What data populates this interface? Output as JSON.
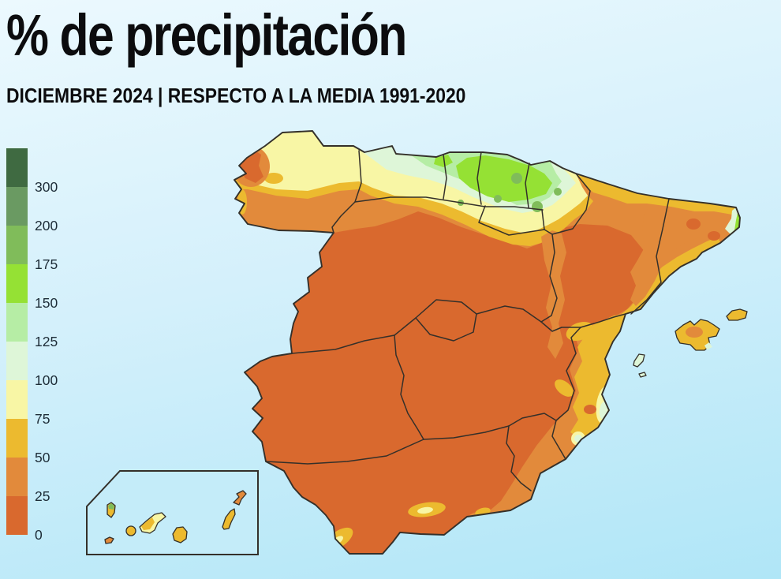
{
  "title": "% de precipitación",
  "subtitle": "DICIEMBRE 2024 | RESPECTO A LA MEDIA 1991-2020",
  "legend": {
    "bands": [
      {
        "label": "300",
        "color": "#3f6a41"
      },
      {
        "label": "200",
        "color": "#6a9a62"
      },
      {
        "label": "175",
        "color": "#80bc5a"
      },
      {
        "label": "150",
        "color": "#95e134"
      },
      {
        "label": "125",
        "color": "#b6eda5"
      },
      {
        "label": "100",
        "color": "#def6d8"
      },
      {
        "label": "75",
        "color": "#f8f6a5"
      },
      {
        "label": "50",
        "color": "#ecba2f"
      },
      {
        "label": "25",
        "color": "#e28a3b"
      },
      {
        "label": "0",
        "color": "#d9692e"
      }
    ]
  },
  "colors": {
    "sea_top": "#ecf9fe",
    "sea_bottom": "#b0e6f7",
    "sea_inset": "#c4ecf9",
    "border_line": "#34302a",
    "label_text": "#1d2c37",
    "title_text": "#0c0c0e"
  }
}
